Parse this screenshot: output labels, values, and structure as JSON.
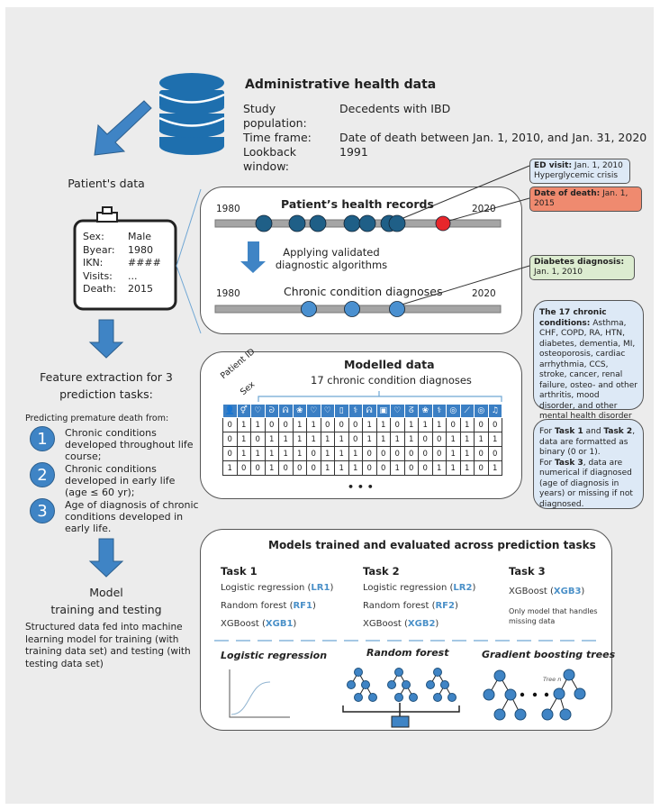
{
  "source": {
    "title": "Administrative health data",
    "rows": [
      {
        "label": "Study population:",
        "value": "Decedents with IBD"
      },
      {
        "label": "Time frame:",
        "value": "Date of death between Jan. 1, 2010, and Jan. 31, 2020"
      },
      {
        "label": "Lookback window:",
        "value": "1991"
      }
    ]
  },
  "patient": {
    "title": "Patient's data",
    "fields": [
      {
        "label": "Sex:",
        "value": "Male"
      },
      {
        "label": "Byear:",
        "value": "1980"
      },
      {
        "label": "IKN:",
        "value": "####"
      },
      {
        "label": "Visits:",
        "value": "..."
      },
      {
        "label": "Death:",
        "value": "2015"
      }
    ]
  },
  "records": {
    "title": "Patient’s health records",
    "start": "1980",
    "end": "2020",
    "step": "Applying validated diagnostic algorithms",
    "diag_title": "Chronic condition diagnoses",
    "diag_start": "1980",
    "diag_end": "2020",
    "record_color": "#1f5f87",
    "death_color": "#e8262b",
    "diag_color": "#4a90d0"
  },
  "callouts": {
    "ed": {
      "label": "ED visit:",
      "value": "Jan. 1, 2010",
      "note": "Hyperglycemic crisis",
      "color": "#dde9f6"
    },
    "death": {
      "label": "Date of death:",
      "value": "Jan. 1, 2015",
      "color": "#ef8a6f"
    },
    "diabetes": {
      "label": "Diabetes diagnosis:",
      "value": "Jan. 1, 2010",
      "color": "#dcecd0"
    },
    "conditions": {
      "label": "The 17 chronic conditions:",
      "value": "Asthma, CHF, COPD, RA, HTN, diabetes, dementia, MI, osteoporosis, cardiac arrhythmia, CCS, stroke, cancer, renal failure, osteo- and other arthritis, mood disorder, and other mental health disorder"
    },
    "format": {
      "p1": "For ",
      "t1": "Task 1",
      "p2": " and ",
      "t2": "Task 2",
      "p3": ", data are formatted as binary (0 or 1).",
      "p4": "For ",
      "t3": "Task 3",
      "p5": ", data are numerical if diagnosed (age of diagnosis in years) or missing if not diagnosed."
    }
  },
  "modelled": {
    "title": "Modelled data",
    "subtitle": "17 chronic condition diagnoses",
    "col_patient": "Patient ID",
    "col_sex": "Sex",
    "ellipsis": "• • •",
    "icons": [
      "person-icon",
      "sex-icon",
      "heart-icon",
      "intestine-icon",
      "lungs-icon",
      "brain-icon",
      "heart-icon",
      "heart-pulse-icon",
      "pill-bottle-icon",
      "stethoscope-icon",
      "lungs-icon",
      "xray-icon",
      "heart-icon",
      "ribbon-icon",
      "brain-icon",
      "stethoscope-icon",
      "kidney-icon",
      "carrot-icon",
      "kidney-icon",
      "music-icon"
    ],
    "icon_glyphs": [
      "👤",
      "⚥",
      "♡",
      "ᘐ",
      "ᕱ",
      "❀",
      "♡",
      "♡",
      "▯",
      "⚕",
      "ᕱ",
      "▣",
      "♡",
      "ᘔ",
      "❀",
      "⚕",
      "◎",
      "⟋",
      "◎",
      "♫"
    ],
    "rows": [
      [
        "0",
        "1",
        "1",
        "0",
        "0",
        "1",
        "1",
        "0",
        "0",
        "0",
        "1",
        "1",
        "0",
        "1",
        "1",
        "1",
        "0",
        "1",
        "0",
        "0"
      ],
      [
        "0",
        "1",
        "0",
        "1",
        "1",
        "1",
        "1",
        "1",
        "1",
        "0",
        "1",
        "1",
        "1",
        "1",
        "0",
        "0",
        "1",
        "1",
        "1",
        "1"
      ],
      [
        "0",
        "1",
        "1",
        "1",
        "1",
        "1",
        "0",
        "1",
        "1",
        "1",
        "0",
        "0",
        "0",
        "0",
        "0",
        "0",
        "1",
        "1",
        "0",
        "0"
      ],
      [
        "1",
        "0",
        "0",
        "1",
        "0",
        "0",
        "0",
        "1",
        "1",
        "1",
        "0",
        "0",
        "1",
        "0",
        "0",
        "1",
        "1",
        "1",
        "0",
        "1"
      ]
    ]
  },
  "features": {
    "title": "Feature extraction for 3 prediction tasks:",
    "intro": "Predicting premature death from:",
    "items": [
      {
        "n": "1",
        "text": "Chronic conditions developed throughout life course;"
      },
      {
        "n": "2",
        "text": "Chronic conditions developed in early life (age ≤ 60 yr);"
      },
      {
        "n": "3",
        "text": "Age of diagnosis of chronic conditions developed in early life."
      }
    ]
  },
  "training": {
    "title1": "Model",
    "title2": "training and testing",
    "text": "Structured data fed into machine learning model for training (with training data set) and testing (with testing data set)"
  },
  "models": {
    "title": "Models trained and evaluated across prediction tasks",
    "tasks": [
      {
        "name": "Task 1",
        "models": [
          {
            "name": "Logistic regression ",
            "code": "LR1"
          },
          {
            "name": "Random forest ",
            "code": "RF1"
          },
          {
            "name": "XGBoost ",
            "code": "XGB1"
          }
        ]
      },
      {
        "name": "Task 2",
        "models": [
          {
            "name": "Logistic regression ",
            "code": "LR2"
          },
          {
            "name": "Random forest ",
            "code": "RF2"
          },
          {
            "name": "XGBoost ",
            "code": "XGB2"
          }
        ]
      },
      {
        "name": "Task 3",
        "models": [
          {
            "name": "XGBoost ",
            "code": "XGB3"
          }
        ],
        "note": "Only model that handles missing data"
      }
    ],
    "lr": "Logistic regression",
    "rf": "Random forest",
    "gb": "Gradient boosting trees",
    "tree_n": "Tree n",
    "accent": "#4a90c8"
  }
}
